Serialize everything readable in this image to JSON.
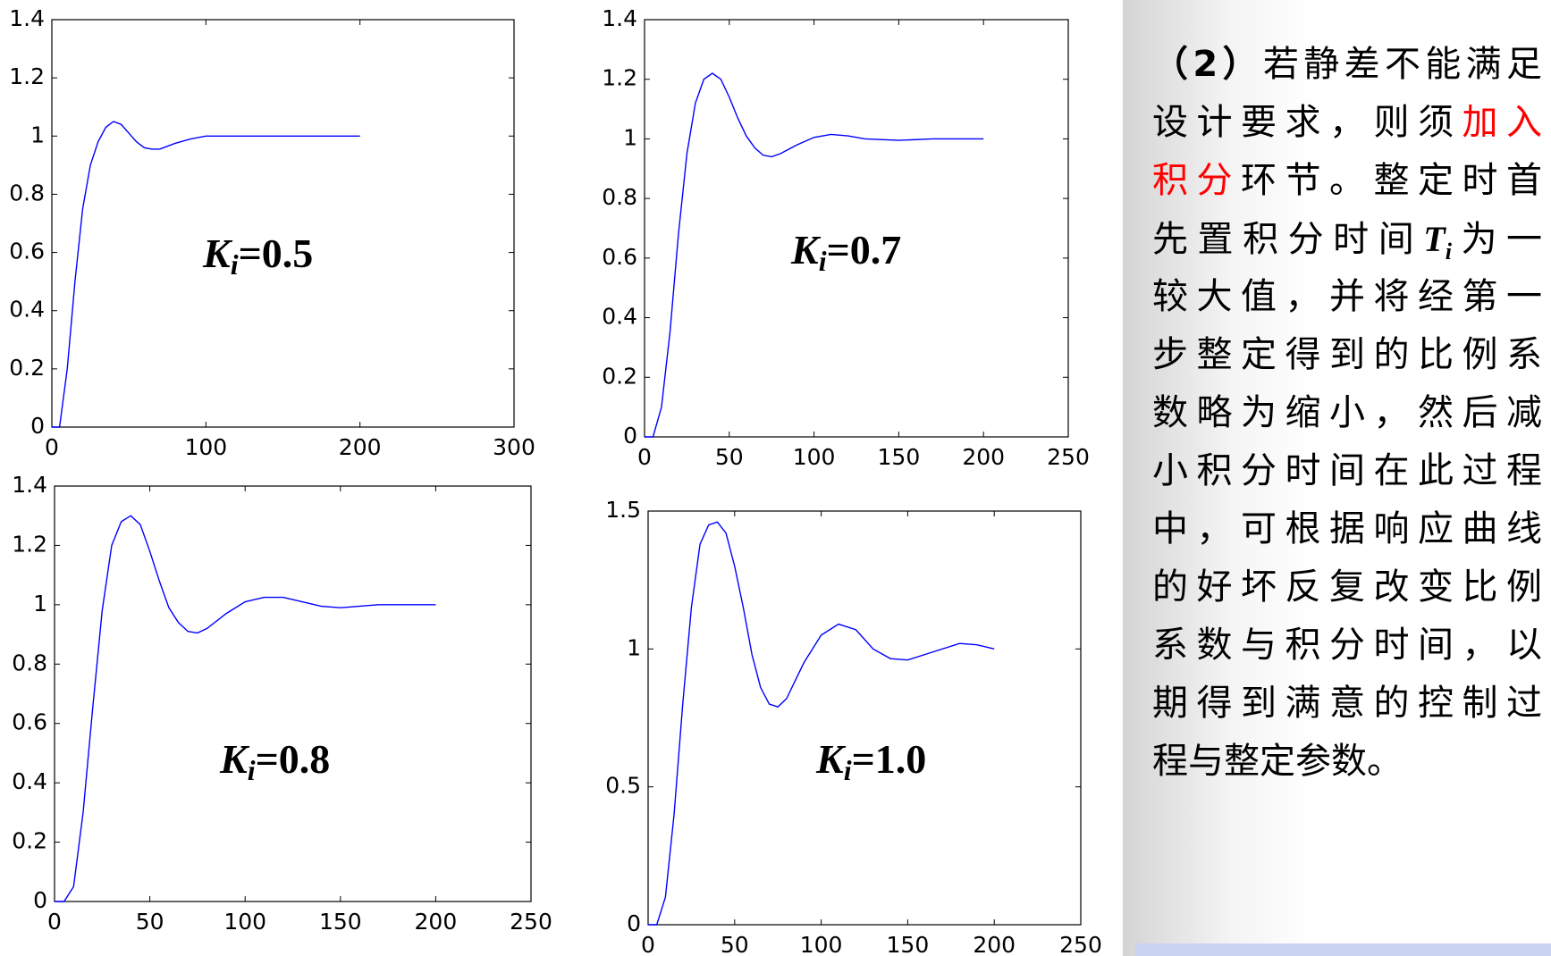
{
  "chart_data": [
    {
      "type": "line",
      "annotation": {
        "symbol": "K",
        "subscript": "i",
        "text": "=0.5"
      },
      "x": [
        0,
        5,
        10,
        15,
        20,
        25,
        30,
        35,
        40,
        45,
        50,
        55,
        60,
        65,
        70,
        75,
        80,
        90,
        100,
        120,
        150,
        200
      ],
      "values": [
        0,
        0,
        0.2,
        0.5,
        0.75,
        0.9,
        0.98,
        1.03,
        1.05,
        1.04,
        1.01,
        0.98,
        0.96,
        0.955,
        0.955,
        0.965,
        0.975,
        0.99,
        1.0,
        1.0,
        1.0,
        1.0
      ],
      "color": "#0000ff",
      "xlim": [
        0,
        300
      ],
      "ylim": [
        0,
        1.4
      ],
      "xticks": [
        0,
        100,
        200,
        300
      ],
      "yticks": [
        0,
        0.2,
        0.4,
        0.6,
        0.8,
        1,
        1.2,
        1.4
      ]
    },
    {
      "type": "line",
      "annotation": {
        "symbol": "K",
        "subscript": "i",
        "text": "=0.7"
      },
      "x": [
        0,
        5,
        10,
        15,
        20,
        25,
        30,
        35,
        40,
        45,
        50,
        55,
        60,
        65,
        70,
        75,
        80,
        90,
        100,
        110,
        120,
        130,
        150,
        170,
        200
      ],
      "values": [
        0,
        0,
        0.1,
        0.35,
        0.68,
        0.95,
        1.12,
        1.2,
        1.22,
        1.2,
        1.14,
        1.07,
        1.01,
        0.97,
        0.945,
        0.94,
        0.95,
        0.98,
        1.005,
        1.015,
        1.01,
        1.0,
        0.995,
        1.0,
        1.0
      ],
      "color": "#0000ff",
      "xlim": [
        0,
        250
      ],
      "ylim": [
        0,
        1.4
      ],
      "xticks": [
        0,
        50,
        100,
        150,
        200,
        250
      ],
      "yticks": [
        0,
        0.2,
        0.4,
        0.6,
        0.8,
        1,
        1.2,
        1.4
      ]
    },
    {
      "type": "line",
      "annotation": {
        "symbol": "K",
        "subscript": "i",
        "text": "=0.8"
      },
      "x": [
        0,
        5,
        10,
        15,
        20,
        25,
        30,
        35,
        40,
        45,
        50,
        55,
        60,
        65,
        70,
        75,
        80,
        90,
        100,
        110,
        120,
        130,
        140,
        150,
        170,
        200
      ],
      "values": [
        0,
        0,
        0.05,
        0.3,
        0.65,
        0.98,
        1.2,
        1.28,
        1.3,
        1.27,
        1.18,
        1.08,
        0.99,
        0.94,
        0.91,
        0.905,
        0.92,
        0.97,
        1.01,
        1.025,
        1.025,
        1.01,
        0.995,
        0.99,
        1.0,
        1.0
      ],
      "color": "#0000ff",
      "xlim": [
        0,
        250
      ],
      "ylim": [
        0,
        1.4
      ],
      "xticks": [
        0,
        50,
        100,
        150,
        200,
        250
      ],
      "yticks": [
        0,
        0.2,
        0.4,
        0.6,
        0.8,
        1,
        1.2,
        1.4
      ]
    },
    {
      "type": "line",
      "annotation": {
        "symbol": "K",
        "subscript": "i",
        "text": "=1.0"
      },
      "x": [
        0,
        5,
        10,
        15,
        20,
        25,
        30,
        35,
        40,
        45,
        50,
        55,
        60,
        65,
        70,
        75,
        80,
        90,
        100,
        110,
        120,
        130,
        140,
        150,
        160,
        180,
        190,
        200
      ],
      "values": [
        0,
        0,
        0.1,
        0.4,
        0.8,
        1.15,
        1.38,
        1.45,
        1.46,
        1.42,
        1.3,
        1.15,
        0.98,
        0.86,
        0.8,
        0.79,
        0.82,
        0.95,
        1.05,
        1.09,
        1.07,
        1.0,
        0.965,
        0.96,
        0.98,
        1.02,
        1.015,
        1.0
      ],
      "color": "#0000ff",
      "xlim": [
        0,
        250
      ],
      "ylim": [
        0,
        1.5
      ],
      "xticks": [
        0,
        50,
        100,
        150,
        200,
        250
      ],
      "yticks": [
        0,
        0.5,
        1,
        1.5
      ]
    }
  ],
  "text": {
    "lines": [
      [
        {
          "text": "（2）",
          "bold": true
        },
        {
          "text": "若静差不能满足"
        }
      ],
      [
        {
          "text": "设计要求，则须"
        },
        {
          "text": "加入",
          "color": "#ff0000"
        }
      ],
      [
        {
          "text": "积分",
          "color": "#ff0000"
        },
        {
          "text": "环节。整定时首"
        }
      ],
      [
        {
          "text": "先置积分时间"
        },
        {
          "text": "T",
          "sub": "i",
          "bold": true,
          "italic": true
        },
        {
          "text": "为一"
        }
      ],
      [
        {
          "text": "较大值，并将经第一"
        }
      ],
      [
        {
          "text": "步整定得到的比例系"
        }
      ],
      [
        {
          "text": "数略为缩小，然后减"
        }
      ],
      [
        {
          "text": "小积分时间在此过程"
        }
      ],
      [
        {
          "text": "中，可根据响应曲线"
        }
      ],
      [
        {
          "text": "的好坏反复改变比例"
        }
      ],
      [
        {
          "text": "系数与积分时间，以"
        }
      ],
      [
        {
          "text": "期得到满意的控制过"
        }
      ],
      [
        {
          "text": "程与整定参数。"
        }
      ]
    ]
  }
}
